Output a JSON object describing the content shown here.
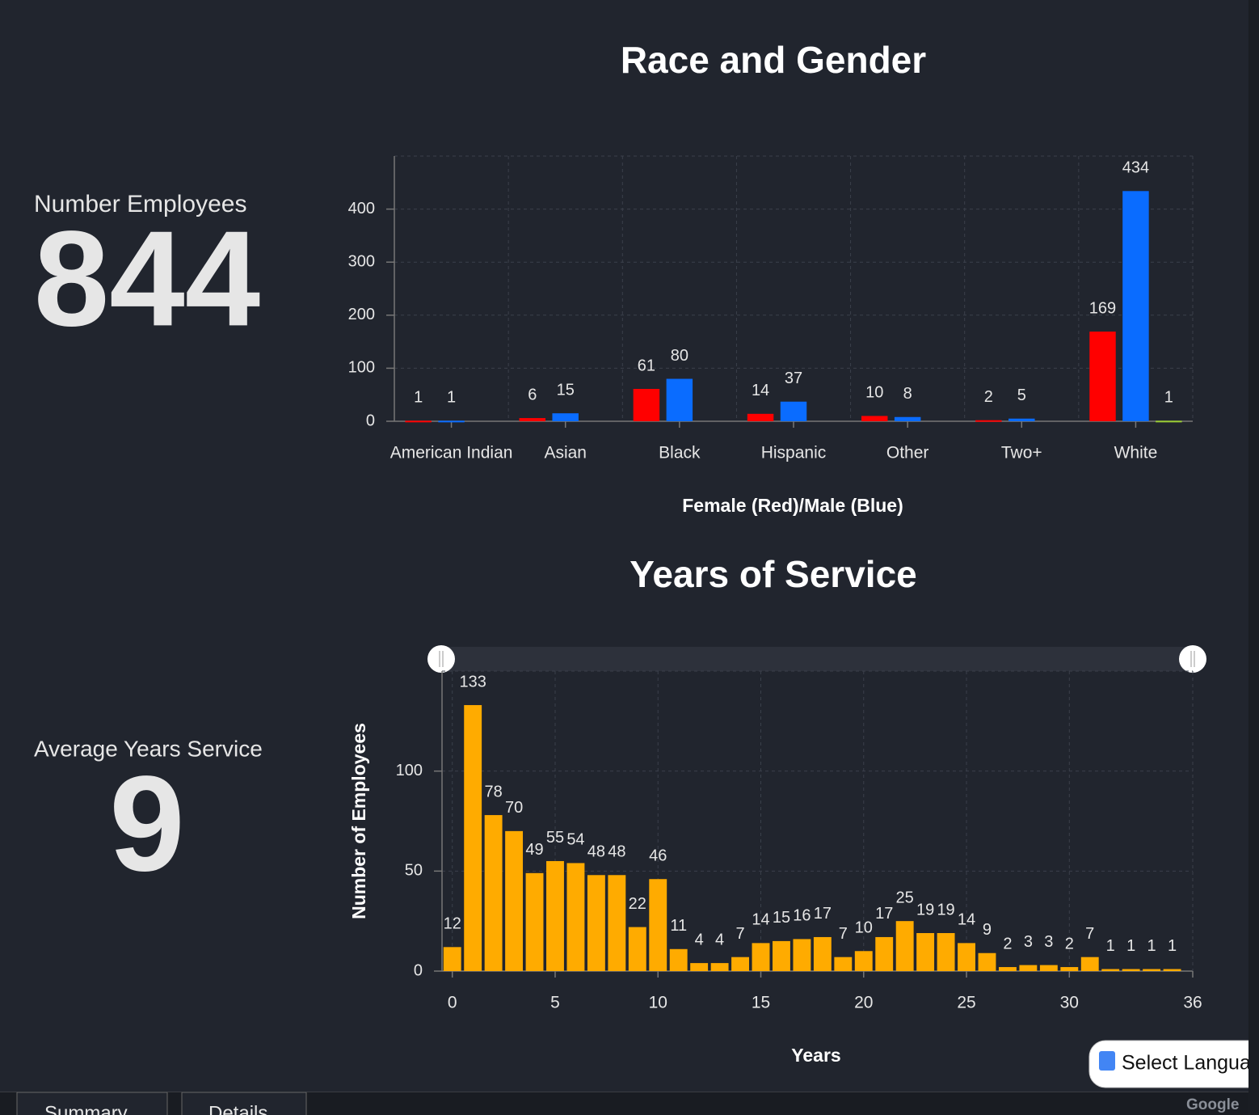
{
  "indicators": [
    {
      "label": "Number Employees",
      "value": 844
    },
    {
      "label": "Average Years Service",
      "value": 9
    }
  ],
  "chart_data": [
    {
      "type": "bar",
      "title": "Race and Gender",
      "x_label": "Female (Red)/Male (Blue)",
      "categories": [
        "American Indian",
        "Asian",
        "Black",
        "Hispanic",
        "Other",
        "Two+",
        "White"
      ],
      "series": [
        {
          "color": "#ff0000",
          "values": [
            1,
            6,
            61,
            14,
            10,
            2,
            169
          ]
        },
        {
          "color": "#0a6cff",
          "values": [
            1,
            15,
            80,
            37,
            8,
            5,
            434
          ]
        },
        {
          "color": "#9acd32",
          "values": [
            null,
            null,
            null,
            null,
            null,
            null,
            1
          ]
        }
      ],
      "ylim": [
        0,
        500
      ],
      "yticks": [
        0,
        100,
        200,
        300,
        400
      ],
      "grid": true
    },
    {
      "type": "bar",
      "title": "Years of Service",
      "x_label": "Years",
      "y_label": "Number of Employees",
      "x": [
        0,
        1,
        2,
        3,
        4,
        5,
        6,
        7,
        8,
        9,
        10,
        11,
        12,
        13,
        14,
        15,
        16,
        17,
        18,
        19,
        20,
        21,
        22,
        23,
        24,
        25,
        26,
        27,
        28,
        29,
        30,
        31,
        32,
        33,
        34,
        35
      ],
      "values": [
        12,
        133,
        78,
        70,
        49,
        55,
        54,
        48,
        48,
        22,
        46,
        11,
        4,
        4,
        7,
        14,
        15,
        16,
        17,
        7,
        10,
        17,
        25,
        19,
        19,
        14,
        9,
        2,
        3,
        3,
        2,
        7,
        1,
        1,
        1,
        1
      ],
      "color": "#ffab00",
      "xlim": [
        -0.5,
        36
      ],
      "xticks": [
        0,
        5,
        10,
        15,
        20,
        25,
        30,
        36
      ],
      "ylim": [
        0,
        150
      ],
      "yticks": [
        0,
        50,
        100
      ],
      "grid": true
    }
  ],
  "tabs": [
    "Summary",
    "Details"
  ],
  "translate": {
    "button": "Select Language",
    "brand": "Google"
  }
}
